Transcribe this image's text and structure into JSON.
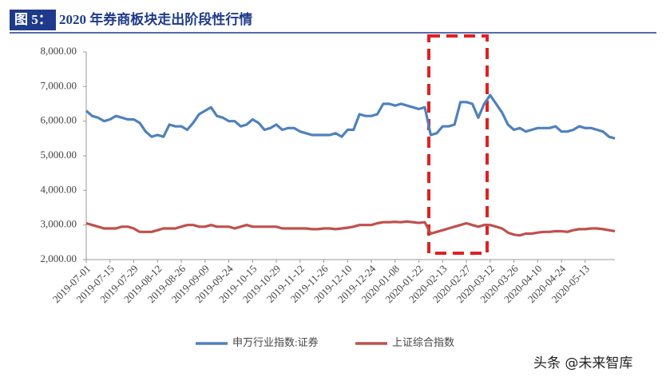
{
  "chart_data": {
    "type": "line",
    "figure_label": "图 5：",
    "title": "2020 年券商板块走出阶段性行情",
    "watermark": "头条 @未来智库",
    "categories": [
      "2019-07-01",
      null,
      null,
      null,
      "2019-07-15",
      null,
      null,
      null,
      "2019-07-29",
      null,
      null,
      null,
      "2019-08-12",
      null,
      null,
      null,
      "2019-08-26",
      null,
      null,
      null,
      "2019-09-09",
      null,
      null,
      null,
      "2019-09-24",
      null,
      null,
      null,
      "2019-10-15",
      null,
      null,
      null,
      "2019-10-29",
      null,
      null,
      null,
      "2019-11-12",
      null,
      null,
      null,
      "2019-11-26",
      null,
      null,
      null,
      "2019-12-10",
      null,
      null,
      null,
      "2019-12-24",
      null,
      null,
      null,
      "2020-01-08",
      null,
      null,
      null,
      "2020-01-22",
      null,
      null,
      null,
      "2020-02-13",
      null,
      null,
      null,
      "2020-02-27",
      null,
      null,
      null,
      "2020-03-12",
      null,
      null,
      null,
      "2020-03-26",
      null,
      null,
      null,
      "2020-04-10",
      null,
      null,
      null,
      "2020-04-24",
      null,
      null,
      null,
      "2020-05-13",
      null,
      null,
      null,
      null,
      null
    ],
    "series": [
      {
        "name": "申万行业指数:证券",
        "color": "#4f81bd",
        "values": [
          6300,
          6150,
          6100,
          6000,
          6050,
          6150,
          6100,
          6050,
          6050,
          5950,
          5700,
          5550,
          5600,
          5550,
          5900,
          5850,
          5850,
          5750,
          5950,
          6200,
          6300,
          6400,
          6150,
          6100,
          6000,
          6000,
          5850,
          5900,
          6050,
          5950,
          5750,
          5800,
          5900,
          5750,
          5800,
          5800,
          5700,
          5650,
          5600,
          5600,
          5600,
          5600,
          5650,
          5550,
          5750,
          5750,
          6200,
          6150,
          6150,
          6200,
          6500,
          6500,
          6450,
          6500,
          6450,
          6400,
          6350,
          6400,
          5600,
          5650,
          5850,
          5850,
          5900,
          6550,
          6550,
          6500,
          6100,
          6500,
          6750,
          6500,
          6250,
          5900,
          5750,
          5800,
          5700,
          5750,
          5800,
          5800,
          5800,
          5850,
          5700,
          5700,
          5750,
          5850,
          5800,
          5800,
          5750,
          5700,
          5550,
          5500
        ]
      },
      {
        "name": "上证综合指数",
        "color": "#c0504d",
        "values": [
          3050,
          3000,
          2950,
          2900,
          2900,
          2900,
          2950,
          2950,
          2900,
          2800,
          2800,
          2800,
          2850,
          2900,
          2900,
          2900,
          2950,
          3000,
          3000,
          2950,
          2950,
          3000,
          2950,
          2950,
          2950,
          2900,
          2950,
          3000,
          2950,
          2950,
          2950,
          2950,
          2950,
          2900,
          2900,
          2900,
          2900,
          2900,
          2880,
          2880,
          2900,
          2900,
          2880,
          2900,
          2920,
          2950,
          3000,
          3000,
          3000,
          3050,
          3080,
          3080,
          3090,
          3080,
          3100,
          3080,
          3060,
          3080,
          2750,
          2800,
          2850,
          2900,
          2950,
          3000,
          3050,
          3000,
          2950,
          3000,
          3000,
          2950,
          2900,
          2780,
          2720,
          2700,
          2750,
          2750,
          2780,
          2800,
          2800,
          2820,
          2820,
          2800,
          2850,
          2880,
          2880,
          2900,
          2900,
          2880,
          2850,
          2820
        ]
      }
    ],
    "ylim": [
      2000,
      8000
    ],
    "yticks": [
      {
        "value": 8000,
        "label": "8,000.00"
      },
      {
        "value": 7000,
        "label": "7,000.00"
      },
      {
        "value": 6000,
        "label": "6,000.00"
      },
      {
        "value": 5000,
        "label": "5,000.00"
      },
      {
        "value": 4000,
        "label": "4,000.00"
      },
      {
        "value": 3000,
        "label": "3,000.00"
      },
      {
        "value": 2000,
        "label": "2,000.00"
      }
    ],
    "grid": false
  }
}
